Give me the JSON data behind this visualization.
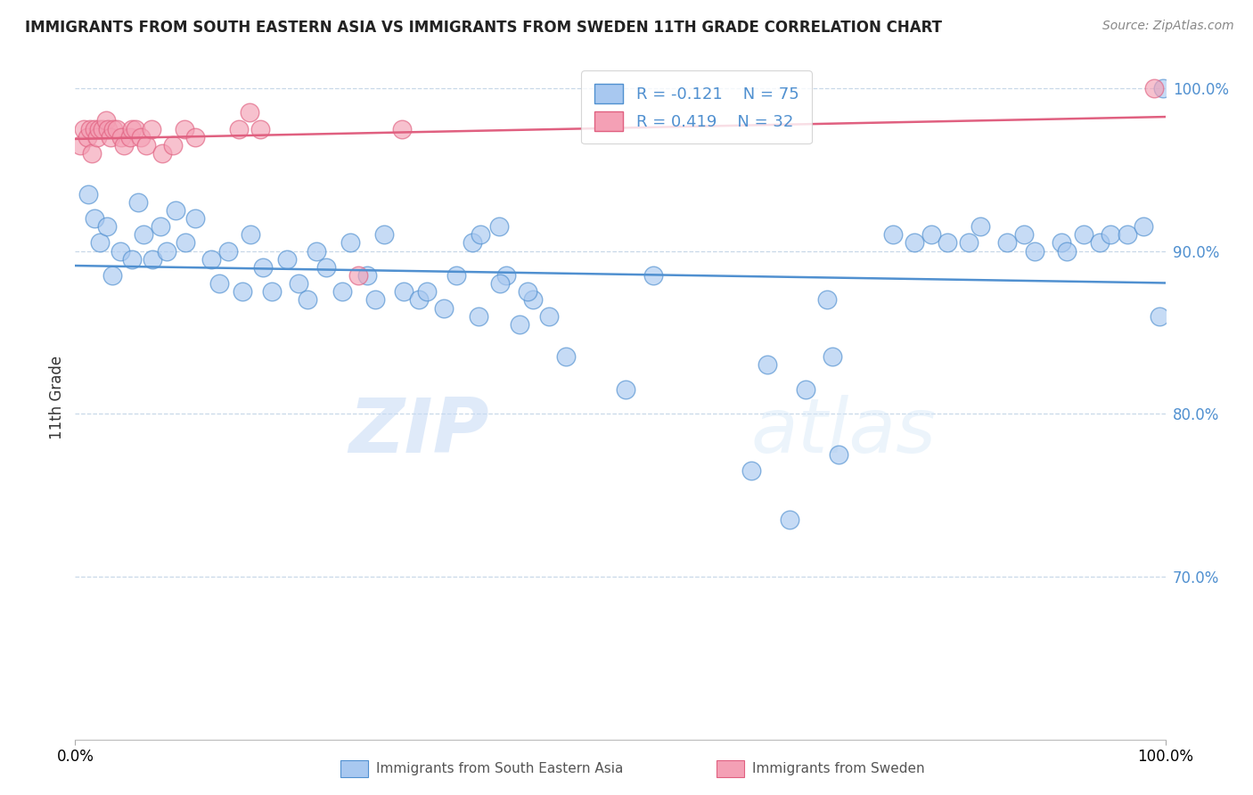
{
  "title": "IMMIGRANTS FROM SOUTH EASTERN ASIA VS IMMIGRANTS FROM SWEDEN 11TH GRADE CORRELATION CHART",
  "source": "Source: ZipAtlas.com",
  "ylabel": "11th Grade",
  "yaxis_ticks": [
    70.0,
    80.0,
    90.0,
    100.0
  ],
  "yaxis_labels": [
    "70.0%",
    "80.0%",
    "90.0%",
    "100.0%"
  ],
  "xmin": 0.0,
  "xmax": 100.0,
  "ymin": 60.0,
  "ymax": 102.0,
  "legend_label1": "Immigrants from South Eastern Asia",
  "legend_label2": "Immigrants from Sweden",
  "R1": -0.121,
  "N1": 75,
  "R2": 0.419,
  "N2": 32,
  "color_blue": "#a8c8f0",
  "color_pink": "#f4a0b5",
  "line_blue": "#5090d0",
  "line_pink": "#e06080",
  "tick_color": "#5090d0",
  "watermark_color": "#ddeeff",
  "blue_x": [
    1.2,
    1.8,
    2.3,
    2.9,
    3.4,
    4.1,
    5.2,
    5.8,
    6.3,
    7.1,
    7.8,
    8.4,
    9.2,
    10.1,
    11.0,
    12.5,
    13.2,
    14.0,
    15.3,
    16.1,
    17.2,
    18.0,
    19.4,
    20.5,
    21.3,
    22.1,
    23.0,
    24.5,
    25.2,
    26.8,
    27.5,
    28.3,
    30.1,
    31.5,
    32.3,
    33.8,
    35.0,
    36.4,
    37.2,
    38.9,
    39.5,
    40.8,
    42.0,
    43.5,
    37.0,
    39.0,
    41.5,
    45.0,
    50.5,
    53.0,
    63.5,
    67.0,
    69.0,
    69.5,
    75.0,
    77.0,
    78.5,
    80.0,
    82.0,
    83.0,
    85.5,
    87.0,
    88.0,
    90.5,
    91.0,
    92.5,
    94.0,
    95.0,
    96.5,
    98.0,
    99.5,
    99.8,
    62.0,
    65.5,
    70.0
  ],
  "blue_y": [
    93.5,
    92.0,
    90.5,
    91.5,
    88.5,
    90.0,
    89.5,
    93.0,
    91.0,
    89.5,
    91.5,
    90.0,
    92.5,
    90.5,
    92.0,
    89.5,
    88.0,
    90.0,
    87.5,
    91.0,
    89.0,
    87.5,
    89.5,
    88.0,
    87.0,
    90.0,
    89.0,
    87.5,
    90.5,
    88.5,
    87.0,
    91.0,
    87.5,
    87.0,
    87.5,
    86.5,
    88.5,
    90.5,
    91.0,
    91.5,
    88.5,
    85.5,
    87.0,
    86.0,
    86.0,
    88.0,
    87.5,
    83.5,
    81.5,
    88.5,
    83.0,
    81.5,
    87.0,
    83.5,
    91.0,
    90.5,
    91.0,
    90.5,
    90.5,
    91.5,
    90.5,
    91.0,
    90.0,
    90.5,
    90.0,
    91.0,
    90.5,
    91.0,
    91.0,
    91.5,
    86.0,
    100.0,
    76.5,
    73.5,
    77.5
  ],
  "pink_x": [
    0.5,
    0.8,
    1.1,
    1.4,
    1.5,
    1.8,
    2.0,
    2.2,
    2.5,
    2.8,
    3.0,
    3.2,
    3.5,
    3.8,
    4.2,
    4.5,
    5.0,
    5.2,
    5.5,
    6.0,
    6.5,
    7.0,
    8.0,
    9.0,
    10.0,
    11.0,
    15.0,
    16.0,
    17.0,
    26.0,
    30.0,
    99.0
  ],
  "pink_y": [
    96.5,
    97.5,
    97.0,
    97.5,
    96.0,
    97.5,
    97.0,
    97.5,
    97.5,
    98.0,
    97.5,
    97.0,
    97.5,
    97.5,
    97.0,
    96.5,
    97.0,
    97.5,
    97.5,
    97.0,
    96.5,
    97.5,
    96.0,
    96.5,
    97.5,
    97.0,
    97.5,
    98.5,
    97.5,
    88.5,
    97.5,
    100.0
  ]
}
